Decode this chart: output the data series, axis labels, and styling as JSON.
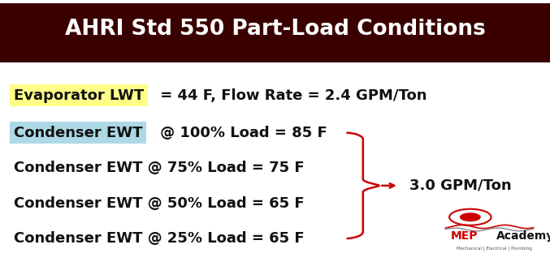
{
  "title": "AHRI Std 550 Part-Load Conditions",
  "title_bg_top": "#8B0000",
  "title_bg_bot": "#6B0000",
  "title_text_color": "#FFFFFF",
  "outer_bg_color": "#1a1a1a",
  "content_bg_color": "#FFFFFF",
  "evap_label": "Evaporator LWT",
  "evap_label_bg": "#FFFF88",
  "evap_text": " = 44 F, Flow Rate = 2.4 GPM/Ton",
  "cond_label": "Condenser EWT",
  "cond_label_bg": "#ADD8E6",
  "line2_text": " @ 100% Load = 85 F",
  "line3_text": "Condenser EWT @ 75% Load = 75 F",
  "line4_text": "Condenser EWT @ 50% Load = 65 F",
  "line5_text": "Condenser EWT @ 25% Load = 65 F",
  "brace_label": "3.0 GPM/Ton",
  "brace_color": "#CC0000",
  "text_color": "#111111",
  "font_size_title": 19,
  "font_size_body": 13,
  "mep_red": "#CC0000",
  "mep_dark": "#111111",
  "mep_gray": "#555555"
}
